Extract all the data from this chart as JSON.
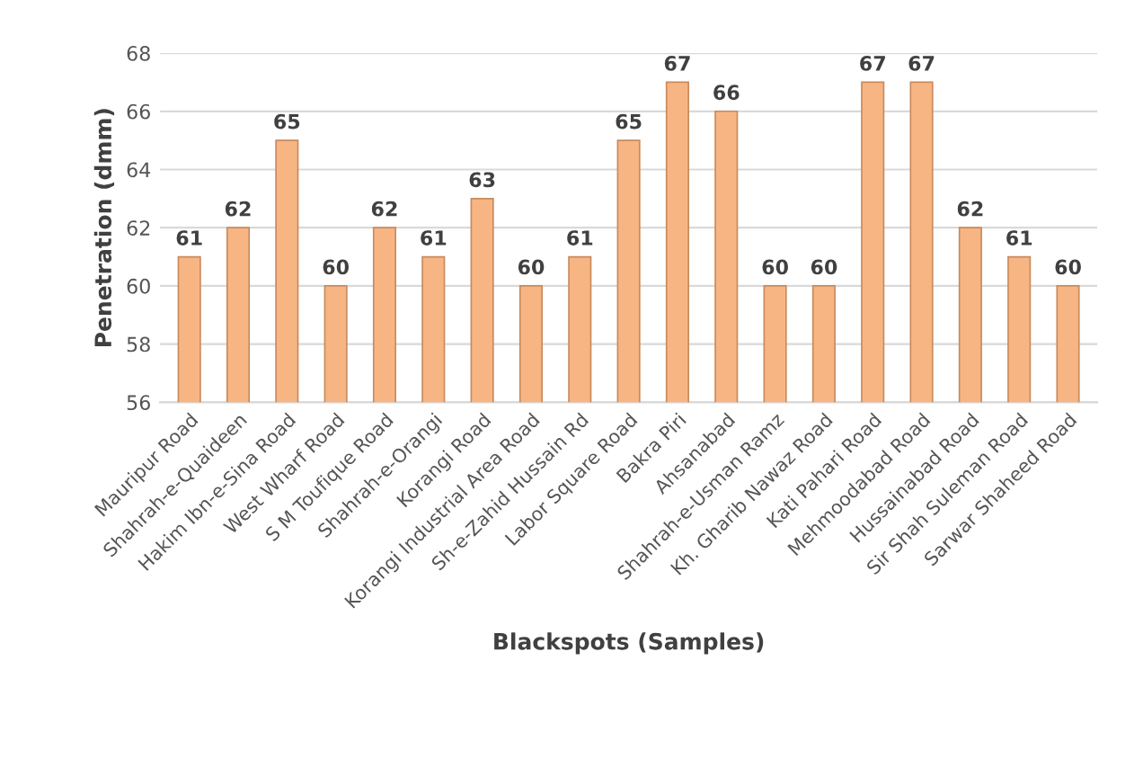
{
  "chart_data": {
    "type": "bar",
    "xlabel": "Blackspots (Samples)",
    "ylabel": "Penetration (dmm)",
    "categories": [
      "Mauripur Road",
      "Shahrah-e-Quaideen",
      "Hakim Ibn-e-Sina Road",
      "West Wharf Road",
      "S M Toufique Road",
      "Shahrah-e-Orangi",
      "Korangi Road",
      "Korangi Industrial Area Road",
      "Sh-e-Zahid Hussain Rd",
      "Labor Square Road",
      "Bakra Piri",
      "Ahsanabad",
      "Shahrah-e-Usman Ramz",
      "Kh. Gharib Nawaz Road",
      "Kati Pahari Road",
      "Mehmoodabad Road",
      "Hussainabad Road",
      "Sir Shah Suleman Road",
      "Sarwar Shaheed Road"
    ],
    "values": [
      61,
      62,
      65,
      60,
      62,
      61,
      63,
      60,
      61,
      65,
      67,
      66,
      60,
      60,
      67,
      67,
      62,
      61,
      60
    ],
    "color": "#f8b584",
    "ylim": [
      56,
      68
    ],
    "yticks": [
      56,
      58,
      60,
      62,
      64,
      66,
      68
    ],
    "grid": "y",
    "data_labels": true
  }
}
